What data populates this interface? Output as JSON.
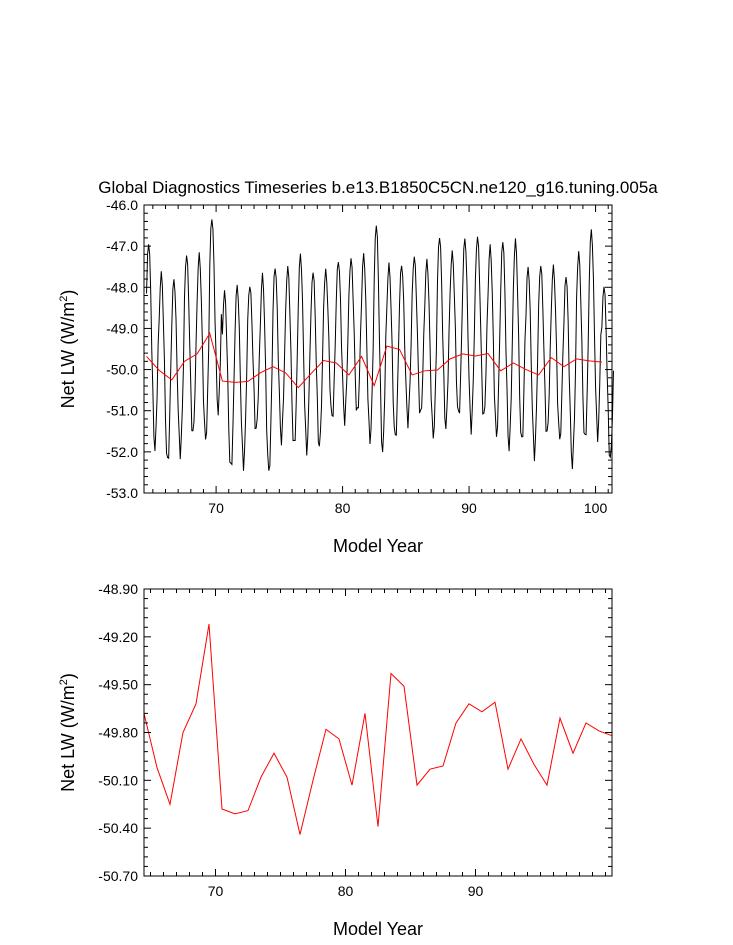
{
  "chart_data": [
    {
      "type": "line",
      "title": "Global Diagnostics Timeseries b.e13.B1850C5CN.ne120_g16.tuning.005a",
      "xlabel": "Model Year",
      "ylabel": "Net LW (W/m",
      "ylabel_sup": "2",
      "ylabel_close": ")",
      "xlim": [
        64.3,
        101.3
      ],
      "ylim": [
        -53.0,
        -46.0
      ],
      "xticks": [
        70,
        80,
        90,
        100
      ],
      "xtick_labels": [
        "70",
        "80",
        "90",
        "100"
      ],
      "yticks": [
        -46.0,
        -47.0,
        -48.0,
        -49.0,
        -50.0,
        -51.0,
        -52.0,
        -53.0
      ],
      "ytick_labels": [
        "-46.0",
        "-47.0",
        "-48.0",
        "-49.0",
        "-50.0",
        "-51.0",
        "-52.0",
        "-53.0"
      ],
      "series": [
        {
          "color": "#000000",
          "monthly_peaks": [
            -46.9,
            -47.65,
            -47.8,
            -47.2,
            -47.2,
            -46.3,
            -48.1,
            -47.95,
            -47.95,
            -47.7,
            -47.5,
            -47.5,
            -47.2,
            -47.6,
            -47.6,
            -47.35,
            -47.3,
            -47.2,
            -46.45,
            -47.45,
            -47.45,
            -47.25,
            -47.35,
            -46.75,
            -47.15,
            -46.8,
            -46.75,
            -47.0,
            -46.85,
            -46.85,
            -47.5,
            -47.45,
            -47.5,
            -47.7,
            -47.15,
            -46.6,
            -47.95
          ],
          "monthly_troughs": [
            -51.9,
            -52.3,
            -52.0,
            -51.6,
            -51.7,
            -51.0,
            -52.45,
            -52.3,
            -51.5,
            -52.5,
            -51.7,
            -51.9,
            -51.95,
            -51.9,
            -51.2,
            -51.2,
            -51.1,
            -51.7,
            -52.0,
            -51.7,
            -51.25,
            -51.15,
            -51.6,
            -51.4,
            -51.15,
            -51.4,
            -51.2,
            -51.6,
            -51.9,
            -51.8,
            -52.05,
            -51.6,
            -51.7,
            -52.3,
            -51.75,
            -51.6,
            -52.2
          ]
        },
        {
          "color": "#ff0000",
          "x": [
            64.5,
            65.5,
            66.5,
            67.5,
            68.5,
            69.5,
            70.5,
            71.5,
            72.5,
            73.5,
            74.5,
            75.5,
            76.5,
            77.5,
            78.5,
            79.5,
            80.5,
            81.5,
            82.5,
            83.5,
            84.5,
            85.5,
            86.5,
            87.5,
            88.5,
            89.5,
            90.5,
            91.5,
            92.5,
            93.5,
            94.5,
            95.5,
            96.5,
            97.5,
            98.5,
            99.5,
            100.5
          ],
          "values": [
            -49.68,
            -50.02,
            -50.25,
            -49.8,
            -49.62,
            -49.12,
            -50.28,
            -50.31,
            -50.29,
            -50.08,
            -49.93,
            -50.08,
            -50.44,
            -50.1,
            -49.78,
            -49.84,
            -50.13,
            -49.68,
            -50.39,
            -49.43,
            -49.51,
            -50.13,
            -50.03,
            -50.01,
            -49.74,
            -49.62,
            -49.67,
            -49.61,
            -50.03,
            -49.84,
            -50.0,
            -50.13,
            -49.71,
            -49.93,
            -49.74,
            -49.79,
            -49.82
          ]
        }
      ]
    },
    {
      "type": "line",
      "xlabel": "Model Year",
      "ylabel": "Net LW (W/m",
      "ylabel_sup": "2",
      "ylabel_close": ")",
      "xlim": [
        64.5,
        100.5
      ],
      "ylim": [
        -50.7,
        -48.9
      ],
      "xticks": [
        70,
        80,
        90
      ],
      "xtick_labels": [
        "70",
        "80",
        "90"
      ],
      "yticks": [
        -48.9,
        -49.2,
        -49.5,
        -49.8,
        -50.1,
        -50.4,
        -50.7
      ],
      "ytick_labels": [
        "-48.90",
        "-49.20",
        "-49.50",
        "-49.80",
        "-50.10",
        "-50.40",
        "-50.70"
      ],
      "series": [
        {
          "color": "#ff0000",
          "x": [
            64.5,
            65.5,
            66.5,
            67.5,
            68.5,
            69.5,
            70.5,
            71.5,
            72.5,
            73.5,
            74.5,
            75.5,
            76.5,
            77.5,
            78.5,
            79.5,
            80.5,
            81.5,
            82.5,
            83.5,
            84.5,
            85.5,
            86.5,
            87.5,
            88.5,
            89.5,
            90.5,
            91.5,
            92.5,
            93.5,
            94.5,
            95.5,
            96.5,
            97.5,
            98.5,
            99.5,
            100.5
          ],
          "values": [
            -49.68,
            -50.02,
            -50.25,
            -49.8,
            -49.62,
            -49.12,
            -50.28,
            -50.31,
            -50.29,
            -50.08,
            -49.93,
            -50.08,
            -50.44,
            -50.1,
            -49.78,
            -49.84,
            -50.13,
            -49.68,
            -50.39,
            -49.43,
            -49.51,
            -50.13,
            -50.03,
            -50.01,
            -49.74,
            -49.62,
            -49.67,
            -49.61,
            -50.03,
            -49.84,
            -50.0,
            -50.13,
            -49.71,
            -49.93,
            -49.74,
            -49.79,
            -49.82
          ]
        }
      ]
    }
  ]
}
